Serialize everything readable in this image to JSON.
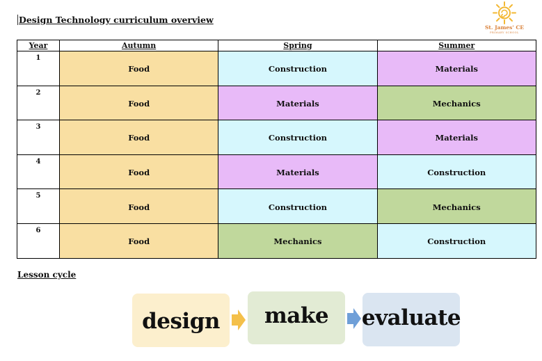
{
  "page_title": "Design Technology curriculum overview",
  "logo": {
    "name": "St. James' CE",
    "subtitle": "PRIMARY SCHOOL",
    "color": "#d9823b"
  },
  "table": {
    "headers": {
      "year": "Year",
      "autumn": "Autumn",
      "spring": "Spring",
      "summer": "Summer"
    },
    "rows": [
      {
        "year": "1",
        "autumn": "Food",
        "spring": "Construction",
        "summer": "Materials"
      },
      {
        "year": "2",
        "autumn": "Food",
        "spring": "Materials",
        "summer": "Mechanics"
      },
      {
        "year": "3",
        "autumn": "Food",
        "spring": "Construction",
        "summer": "Materials"
      },
      {
        "year": "4",
        "autumn": "Food",
        "spring": "Materials",
        "summer": "Construction"
      },
      {
        "year": "5",
        "autumn": "Food",
        "spring": "Construction",
        "summer": "Mechanics"
      },
      {
        "year": "6",
        "autumn": "Food",
        "spring": "Mechanics",
        "summer": "Construction"
      }
    ]
  },
  "topic_colors": {
    "Food": "#f9dfa2",
    "Construction": "#d6f7fd",
    "Materials": "#e8baf8",
    "Mechanics": "#c0d89c"
  },
  "lesson_cycle": {
    "title": "Lesson cycle",
    "stages": [
      "design",
      "make",
      "evaluate"
    ],
    "colors": {
      "design": "#fcefcd",
      "make": "#e2ebd4",
      "evaluate": "#dae5f1",
      "arrow_1": "#f4c04a",
      "arrow_2": "#6f9fd8"
    }
  }
}
